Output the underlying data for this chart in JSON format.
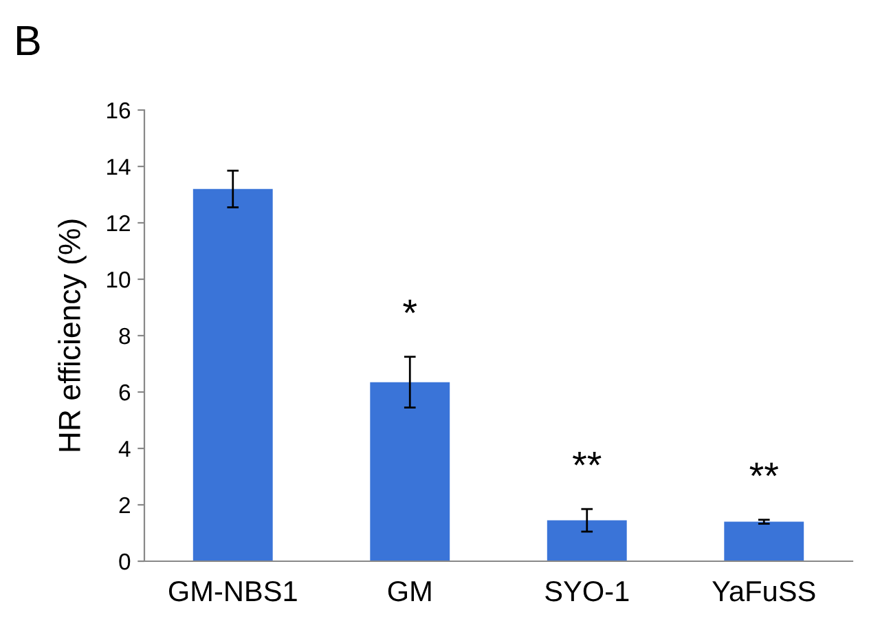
{
  "chart_data": {
    "type": "bar",
    "ylabel": "HR efficiency (%)",
    "categories": [
      "GM-NBS1",
      "GM",
      "SYO-1",
      "YaFuSS"
    ],
    "values": [
      13.2,
      6.35,
      1.45,
      1.4
    ],
    "errors": [
      0.65,
      0.9,
      0.4,
      0.07
    ],
    "color": "#3a74d8",
    "ylim": [
      0,
      16
    ],
    "yticks": [
      0,
      2,
      4,
      6,
      8,
      10,
      12,
      14,
      16
    ],
    "grid": false,
    "annotations": [
      "B",
      "*",
      "**",
      "**"
    ]
  }
}
